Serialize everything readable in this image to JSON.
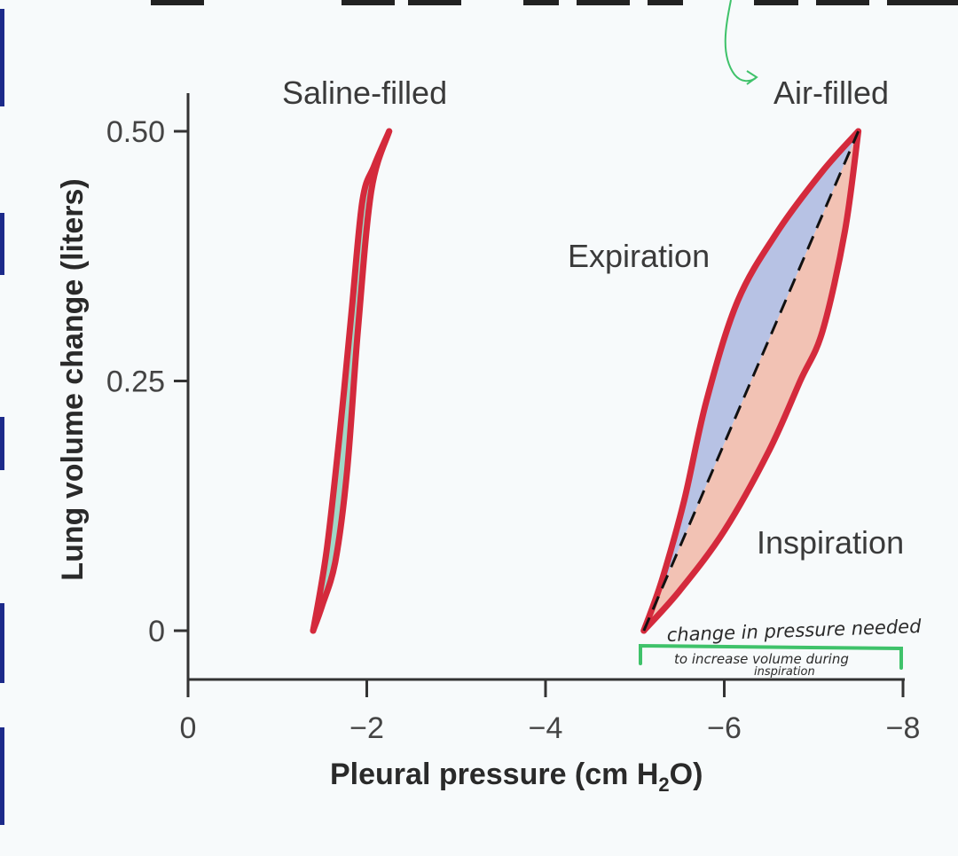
{
  "colors": {
    "loop_stroke": "#d42a3c",
    "saline_fill": "#9fd8c7",
    "expiration_fill": "#b7c2e4",
    "inspiration_fill": "#f2c2b4",
    "annotation": "#3fc26a",
    "axis": "#333333"
  },
  "annotation": {
    "line1": "change in pressure needed",
    "line2": "to increase volume during",
    "line3": "inspiration"
  },
  "chart_data": {
    "type": "line",
    "xlabel_main": "Pleural pressure (cm H",
    "xlabel_sub": "2",
    "xlabel_end": "O)",
    "ylabel": "Lung volume change (liters)",
    "x_ticks": [
      {
        "value": 0,
        "label": "0"
      },
      {
        "value": -2,
        "label": "−2"
      },
      {
        "value": -4,
        "label": "−4"
      },
      {
        "value": -6,
        "label": "−6"
      },
      {
        "value": -8,
        "label": "−8"
      }
    ],
    "y_ticks": [
      {
        "value": 0,
        "label": "0"
      },
      {
        "value": 0.25,
        "label": "0.25"
      },
      {
        "value": 0.5,
        "label": "0.50"
      }
    ],
    "xlim": [
      0,
      -8
    ],
    "ylim": [
      -0.05,
      0.55
    ],
    "grid": false,
    "labels": {
      "saline": "Saline-filled",
      "air": "Air-filled",
      "expiration": "Expiration",
      "inspiration": "Inspiration"
    },
    "series": [
      {
        "key": "saline_inspiration",
        "x": [
          -1.4,
          -1.55,
          -1.7,
          -1.83,
          -1.95,
          -2.08,
          -2.25
        ],
        "y": [
          0.0,
          0.08,
          0.2,
          0.32,
          0.43,
          0.465,
          0.5
        ]
      },
      {
        "key": "saline_expiration",
        "x": [
          -2.25,
          -2.05,
          -1.9,
          -1.78,
          -1.65,
          -1.5,
          -1.4
        ],
        "y": [
          0.5,
          0.44,
          0.3,
          0.16,
          0.07,
          0.025,
          0.0
        ]
      },
      {
        "key": "air_inspiration",
        "x": [
          -5.1,
          -5.5,
          -6.0,
          -6.5,
          -6.85,
          -7.1,
          -7.35,
          -7.5
        ],
        "y": [
          0.0,
          0.04,
          0.1,
          0.18,
          0.25,
          0.3,
          0.4,
          0.5
        ]
      },
      {
        "key": "air_expiration",
        "x": [
          -7.5,
          -7.1,
          -6.6,
          -6.15,
          -5.8,
          -5.55,
          -5.3,
          -5.1
        ],
        "y": [
          0.5,
          0.46,
          0.4,
          0.33,
          0.23,
          0.13,
          0.05,
          0.0
        ]
      },
      {
        "key": "air_compliance",
        "x": [
          -5.1,
          -7.5
        ],
        "y": [
          0.0,
          0.5
        ]
      }
    ]
  }
}
